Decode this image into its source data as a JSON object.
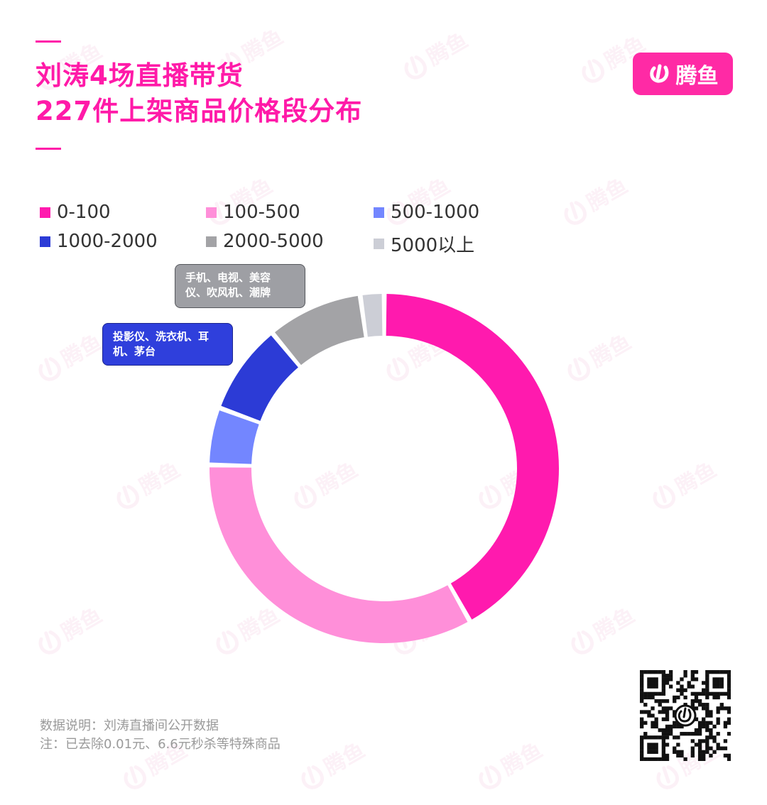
{
  "title": {
    "line1": "刘涛4场直播带货",
    "line2": "227件上架商品价格段分布"
  },
  "brand": {
    "name": "腾鱼",
    "color": "#ff2aa5"
  },
  "callouts": {
    "gray": {
      "line1": "手机、电视、美容",
      "line2": "仪、吹风机、潮牌"
    },
    "blue": {
      "line1": "投影仪、洗衣机、耳",
      "line2": "机、茅台"
    }
  },
  "chart_data": {
    "type": "pie",
    "donut": true,
    "legend_position": "top-left",
    "categories": [
      "0-100",
      "100-500",
      "500-1000",
      "1000-2000",
      "2000-5000",
      "5000以上"
    ],
    "values": [
      41.9,
      33.5,
      5.3,
      8.4,
      8.8,
      2.2
    ],
    "colors": [
      "#ff1aae",
      "#ff8fd9",
      "#7386ff",
      "#2c3bd6",
      "#a3a3a6",
      "#ccced6"
    ]
  },
  "notes": {
    "line1": "数据说明：刘涛直播间公开数据",
    "line2": "注：已去除0.01元、6.6元秒杀等特殊商品"
  },
  "qr_icon": "qr-code-icon"
}
